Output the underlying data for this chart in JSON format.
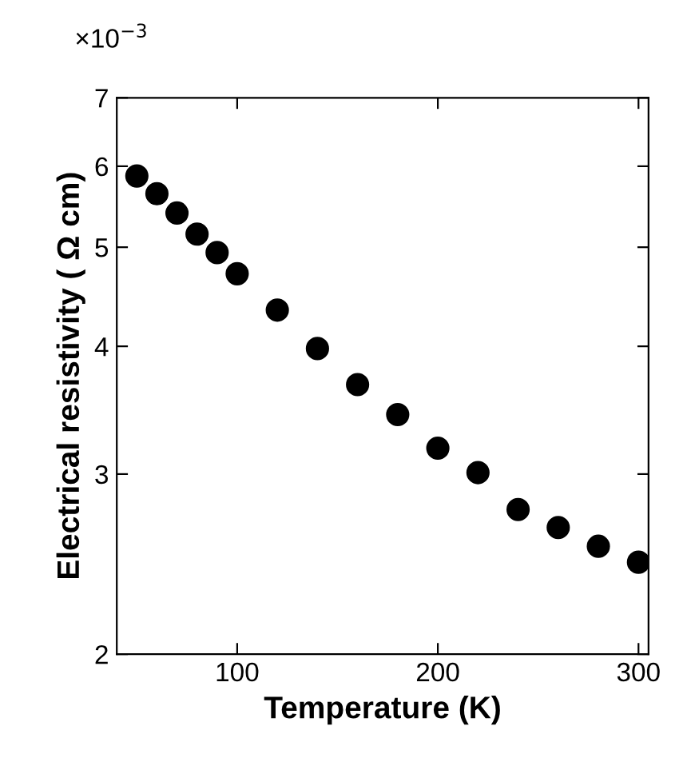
{
  "chart_data": {
    "type": "scatter",
    "xlabel": "Temperature (K)",
    "ylabel": "Electrical resistivity ( Ω cm)",
    "annotations": [
      "×10$^{−3}$"
    ],
    "x": [
      50,
      60,
      70,
      80,
      90,
      100,
      120,
      140,
      160,
      180,
      200,
      220,
      240,
      260,
      280,
      300
    ],
    "series": [
      {
        "color": "#000000",
        "values": [
          5.87,
          5.64,
          5.4,
          5.15,
          4.94,
          4.71,
          4.34,
          3.98,
          3.67,
          3.43,
          3.18,
          3.01,
          2.77,
          2.66,
          2.55,
          2.46
        ]
      }
    ],
    "log": "y",
    "xlim": [
      40,
      305
    ],
    "ylim": [
      2,
      7
    ],
    "xticks": [
      100,
      200,
      300
    ],
    "yticks": [
      2,
      3,
      4,
      5,
      6,
      7
    ],
    "marker": "circle",
    "grid": false,
    "legend": false
  }
}
